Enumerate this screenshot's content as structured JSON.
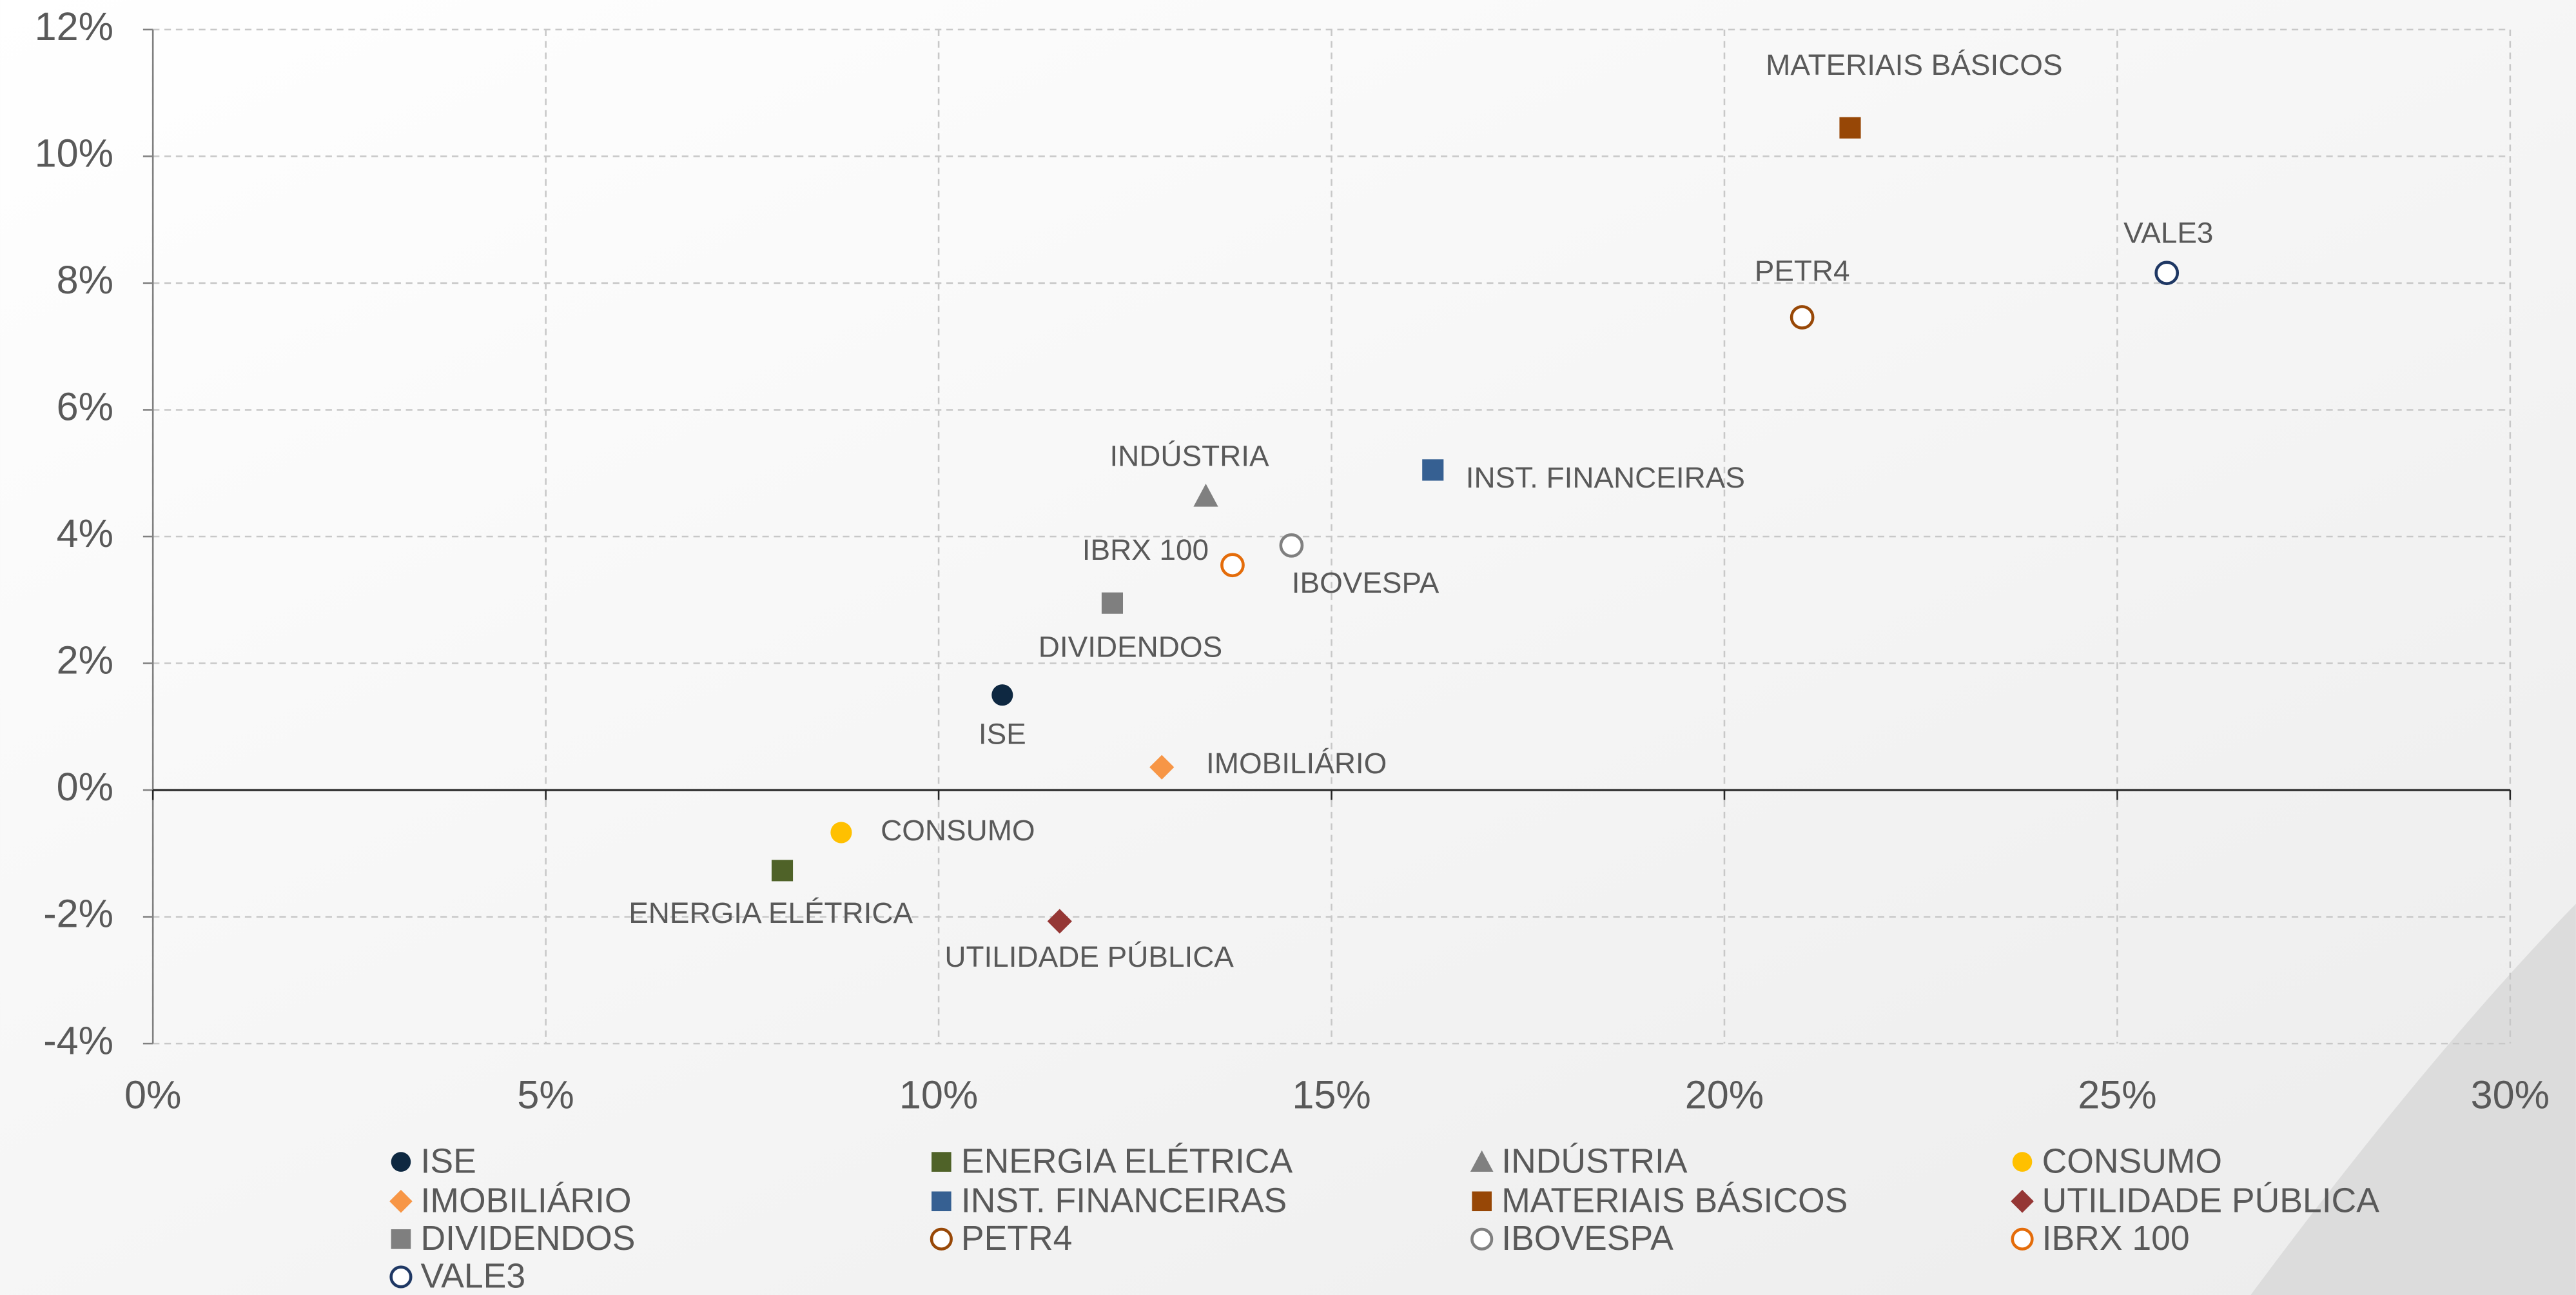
{
  "chart_data": {
    "type": "scatter",
    "xlim": [
      0,
      30
    ],
    "ylim": [
      -4,
      12
    ],
    "xticks": [
      {
        "value": 0,
        "label": "0%"
      },
      {
        "value": 5,
        "label": "5%"
      },
      {
        "value": 10,
        "label": "10%"
      },
      {
        "value": 15,
        "label": "15%"
      },
      {
        "value": 20,
        "label": "20%"
      },
      {
        "value": 25,
        "label": "25%"
      },
      {
        "value": 30,
        "label": "30%"
      }
    ],
    "yticks": [
      {
        "value": -4,
        "label": "-4%"
      },
      {
        "value": -2,
        "label": "-2%"
      },
      {
        "value": 0,
        "label": "0%"
      },
      {
        "value": 2,
        "label": "2%"
      },
      {
        "value": 4,
        "label": "4%"
      },
      {
        "value": 6,
        "label": "6%"
      },
      {
        "value": 8,
        "label": "8%"
      },
      {
        "value": 10,
        "label": "10%"
      },
      {
        "value": 12,
        "label": "12%"
      }
    ],
    "grid": true,
    "legend": "bottom",
    "series": [
      {
        "name": "ISE",
        "color": "#0e2841",
        "marker": "circle",
        "hollow": false,
        "x": 10.81,
        "y": 1.5
      },
      {
        "name": "ENERGIA ELÉTRICA",
        "color": "#4f6228",
        "marker": "square",
        "hollow": false,
        "x": 8.01,
        "y": -1.27
      },
      {
        "name": "INDÚSTRIA",
        "color": "#808080",
        "marker": "triangle",
        "hollow": false,
        "x": 13.4,
        "y": 4.64
      },
      {
        "name": "CONSUMO",
        "color": "#ffc000",
        "marker": "circle",
        "hollow": false,
        "x": 8.76,
        "y": -0.67
      },
      {
        "name": "IMOBILIÁRIO",
        "color": "#f79646",
        "marker": "diamond",
        "hollow": false,
        "x": 12.84,
        "y": 0.36
      },
      {
        "name": "INST. FINANCEIRAS",
        "color": "#366092",
        "marker": "square",
        "hollow": false,
        "x": 16.29,
        "y": 5.05
      },
      {
        "name": "MATERIAIS BÁSICOS",
        "color": "#974706",
        "marker": "square",
        "hollow": false,
        "x": 21.6,
        "y": 10.45
      },
      {
        "name": "UTILIDADE PÚBLICA",
        "color": "#953735",
        "marker": "diamond",
        "hollow": false,
        "x": 11.54,
        "y": -2.07
      },
      {
        "name": "DIVIDENDOS",
        "color": "#7f7f7f",
        "marker": "square",
        "hollow": false,
        "x": 12.21,
        "y": 2.95
      },
      {
        "name": "PETR4",
        "color": "#984807",
        "marker": "circle",
        "hollow": true,
        "x": 20.99,
        "y": 7.46
      },
      {
        "name": "IBOVESPA",
        "color": "#808080",
        "marker": "circle",
        "hollow": true,
        "x": 14.49,
        "y": 3.86
      },
      {
        "name": "IBRX 100",
        "color": "#e46c0a",
        "marker": "circle",
        "hollow": true,
        "x": 13.74,
        "y": 3.55
      },
      {
        "name": "VALE3",
        "color": "#1f3864",
        "marker": "circle",
        "hollow": true,
        "x": 25.63,
        "y": 8.16
      }
    ]
  }
}
